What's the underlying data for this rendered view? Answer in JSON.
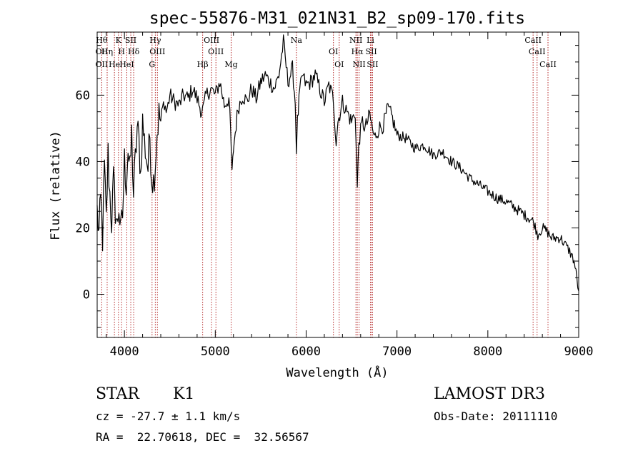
{
  "chart_data": {
    "type": "line",
    "title": "spec-55876-M31_021N31_B2_sp09-170.fits",
    "xlabel": "Wavelength (Å)",
    "ylabel": "Flux (relative)",
    "xlim": [
      3700,
      9000
    ],
    "ylim": [
      -13,
      79
    ],
    "x_ticks": [
      4000,
      5000,
      6000,
      7000,
      8000,
      9000
    ],
    "y_ticks": [
      0,
      20,
      40,
      60
    ],
    "grid": false,
    "series": [
      {
        "points": [
          [
            3700,
            25
          ],
          [
            3720,
            18
          ],
          [
            3740,
            28
          ],
          [
            3760,
            17
          ],
          [
            3780,
            38
          ],
          [
            3800,
            22
          ],
          [
            3820,
            42
          ],
          [
            3840,
            30
          ],
          [
            3860,
            22
          ],
          [
            3880,
            34
          ],
          [
            3900,
            26
          ],
          [
            3920,
            20
          ],
          [
            3940,
            27
          ],
          [
            3960,
            18
          ],
          [
            3980,
            24
          ],
          [
            4000,
            40
          ],
          [
            4020,
            34
          ],
          [
            4040,
            44
          ],
          [
            4060,
            36
          ],
          [
            4080,
            48
          ],
          [
            4100,
            30
          ],
          [
            4120,
            40
          ],
          [
            4140,
            50
          ],
          [
            4160,
            46
          ],
          [
            4180,
            36
          ],
          [
            4200,
            52
          ],
          [
            4220,
            46
          ],
          [
            4240,
            42
          ],
          [
            4260,
            38
          ],
          [
            4280,
            48
          ],
          [
            4300,
            36
          ],
          [
            4320,
            34
          ],
          [
            4340,
            40
          ],
          [
            4360,
            49
          ],
          [
            4380,
            54
          ],
          [
            4400,
            52
          ],
          [
            4420,
            56
          ],
          [
            4440,
            58
          ],
          [
            4460,
            55
          ],
          [
            4480,
            57
          ],
          [
            4500,
            60
          ],
          [
            4550,
            58
          ],
          [
            4600,
            57
          ],
          [
            4650,
            60
          ],
          [
            4700,
            59
          ],
          [
            4750,
            62
          ],
          [
            4800,
            59
          ],
          [
            4850,
            55
          ],
          [
            4870,
            56
          ],
          [
            4900,
            60
          ],
          [
            4950,
            62
          ],
          [
            5000,
            60
          ],
          [
            5050,
            64
          ],
          [
            5100,
            57
          ],
          [
            5150,
            59
          ],
          [
            5170,
            48
          ],
          [
            5185,
            36
          ],
          [
            5200,
            44
          ],
          [
            5250,
            56
          ],
          [
            5300,
            60
          ],
          [
            5350,
            58
          ],
          [
            5400,
            62
          ],
          [
            5450,
            59
          ],
          [
            5500,
            64
          ],
          [
            5550,
            66
          ],
          [
            5600,
            64
          ],
          [
            5650,
            62
          ],
          [
            5700,
            66
          ],
          [
            5750,
            76
          ],
          [
            5800,
            64
          ],
          [
            5850,
            68
          ],
          [
            5880,
            58
          ],
          [
            5893,
            44
          ],
          [
            5905,
            52
          ],
          [
            5930,
            61
          ],
          [
            5960,
            66
          ],
          [
            6000,
            63
          ],
          [
            6050,
            64
          ],
          [
            6100,
            66
          ],
          [
            6150,
            62
          ],
          [
            6200,
            58
          ],
          [
            6250,
            63
          ],
          [
            6300,
            59
          ],
          [
            6330,
            46
          ],
          [
            6350,
            52
          ],
          [
            6400,
            58
          ],
          [
            6450,
            55
          ],
          [
            6500,
            52
          ],
          [
            6540,
            55
          ],
          [
            6563,
            32
          ],
          [
            6580,
            46
          ],
          [
            6620,
            52
          ],
          [
            6650,
            50
          ],
          [
            6700,
            54
          ],
          [
            6750,
            47
          ],
          [
            6800,
            50
          ],
          [
            6850,
            51
          ],
          [
            6900,
            56
          ],
          [
            6950,
            53
          ],
          [
            7000,
            48
          ],
          [
            7100,
            47
          ],
          [
            7200,
            44
          ],
          [
            7300,
            45
          ],
          [
            7400,
            42
          ],
          [
            7500,
            43
          ],
          [
            7600,
            40
          ],
          [
            7700,
            38
          ],
          [
            7800,
            35
          ],
          [
            7900,
            33
          ],
          [
            8000,
            31
          ],
          [
            8100,
            29
          ],
          [
            8200,
            28
          ],
          [
            8300,
            26
          ],
          [
            8400,
            24
          ],
          [
            8500,
            22
          ],
          [
            8550,
            18
          ],
          [
            8600,
            20
          ],
          [
            8650,
            19
          ],
          [
            8700,
            17
          ],
          [
            8800,
            17
          ],
          [
            8850,
            15
          ],
          [
            8900,
            13
          ],
          [
            8950,
            10
          ],
          [
            9000,
            1
          ]
        ]
      }
    ],
    "lines": [
      {
        "x": 3750,
        "labels": [
          "Hθ",
          "OII",
          "OII"
        ]
      },
      {
        "x": 3810,
        "labels": [
          "Hη"
        ]
      },
      {
        "x": 3890,
        "labels": [
          "He"
        ]
      },
      {
        "x": 3934,
        "labels": [
          "K"
        ]
      },
      {
        "x": 3969,
        "labels": [
          "H"
        ]
      },
      {
        "x": 4026,
        "labels": [
          "HeI"
        ]
      },
      {
        "x": 4070,
        "labels": [
          "SII"
        ]
      },
      {
        "x": 4102,
        "labels": [
          "Hδ"
        ]
      },
      {
        "x": 4304,
        "labels": [
          "G"
        ]
      },
      {
        "x": 4340,
        "labels": [
          "Hγ"
        ]
      },
      {
        "x": 4363,
        "labels": [
          "OIII"
        ]
      },
      {
        "x": 4861,
        "labels": [
          "Hβ"
        ]
      },
      {
        "x": 4959,
        "labels": [
          "OIII"
        ]
      },
      {
        "x": 5007,
        "labels": [
          "OIII"
        ]
      },
      {
        "x": 5175,
        "labels": [
          "Mg"
        ]
      },
      {
        "x": 5893,
        "labels": [
          "Na"
        ]
      },
      {
        "x": 6300,
        "labels": [
          "OI"
        ]
      },
      {
        "x": 6364,
        "labels": [
          "OI"
        ]
      },
      {
        "x": 6548,
        "labels": [
          "NII"
        ]
      },
      {
        "x": 6563,
        "labels": [
          "Hα"
        ]
      },
      {
        "x": 6583,
        "labels": [
          "NII"
        ]
      },
      {
        "x": 6708,
        "labels": [
          "Li"
        ]
      },
      {
        "x": 6717,
        "labels": [
          "SII"
        ]
      },
      {
        "x": 6731,
        "labels": [
          "SII"
        ]
      },
      {
        "x": 8498,
        "labels": [
          "CaII"
        ]
      },
      {
        "x": 8542,
        "labels": [
          "CaII"
        ]
      },
      {
        "x": 8662,
        "labels": [
          "CaII"
        ]
      }
    ],
    "line_color": "#000000",
    "marker_color": "#b22222"
  },
  "info": {
    "class": "STAR",
    "subclass": "K1",
    "survey": "LAMOST DR3",
    "cz": "cz = -27.7 ± 1.1 km/s",
    "obs_date": "Obs-Date: 20111110",
    "radec": "RA =  22.70618, DEC =  32.56567"
  }
}
